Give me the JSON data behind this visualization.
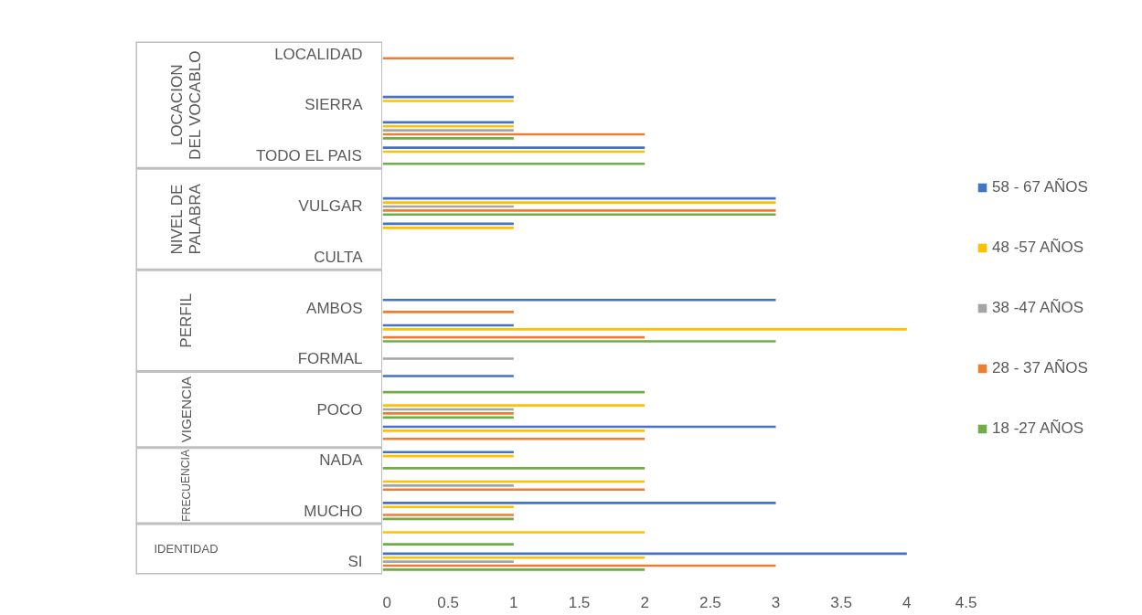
{
  "chart_data": {
    "type": "bar",
    "orientation": "horizontal",
    "categories": [
      "LOCALIDAD",
      null,
      "SIERRA",
      null,
      "TODO EL PAIS",
      null,
      "VULGAR",
      null,
      "CULTA",
      null,
      "AMBOS",
      null,
      "FORMAL",
      null,
      "POCO",
      null,
      "NADA",
      null,
      "MUCHO",
      null,
      "SI"
    ],
    "series": [
      {
        "name": "18 -27 AÑOS",
        "color": "#70ad47",
        "values": [
          null,
          null,
          null,
          1,
          2,
          null,
          3,
          null,
          null,
          null,
          null,
          3,
          null,
          2,
          1,
          null,
          2,
          null,
          1,
          1,
          2
        ]
      },
      {
        "name": "28 - 37 AÑOS",
        "color": "#ed7d31",
        "values": [
          1,
          null,
          null,
          2,
          null,
          null,
          3,
          null,
          null,
          null,
          1,
          2,
          null,
          null,
          1,
          2,
          null,
          2,
          1,
          null,
          3
        ]
      },
      {
        "name": "38 -47 AÑOS",
        "color": "#a5a5a5",
        "values": [
          null,
          null,
          null,
          1,
          null,
          null,
          1,
          null,
          null,
          null,
          null,
          null,
          1,
          null,
          1,
          null,
          null,
          1,
          null,
          null,
          1
        ]
      },
      {
        "name": "48 -57 AÑOS",
        "color": "#ffc000",
        "values": [
          null,
          null,
          1,
          1,
          2,
          null,
          3,
          1,
          null,
          null,
          null,
          4,
          null,
          null,
          2,
          2,
          1,
          2,
          1,
          2,
          2
        ]
      },
      {
        "name": "58 - 67 AÑOS",
        "color": "#4472c4",
        "values": [
          null,
          null,
          1,
          1,
          2,
          null,
          3,
          1,
          null,
          null,
          3,
          1,
          null,
          1,
          null,
          3,
          1,
          null,
          3,
          null,
          4
        ]
      }
    ],
    "annotations": [
      "LOCACION DEL VOCABLO",
      "NIVEL DE PALABRA",
      "PERFIL",
      "VIGENCIA",
      "FRECUENCIA",
      "IDENTIDAD"
    ],
    "xlim": [
      0,
      4.5
    ],
    "xticks": [
      0,
      0.5,
      1,
      1.5,
      2,
      2.5,
      3,
      3.5,
      4,
      4.5
    ],
    "grid": false,
    "legend": "right"
  }
}
